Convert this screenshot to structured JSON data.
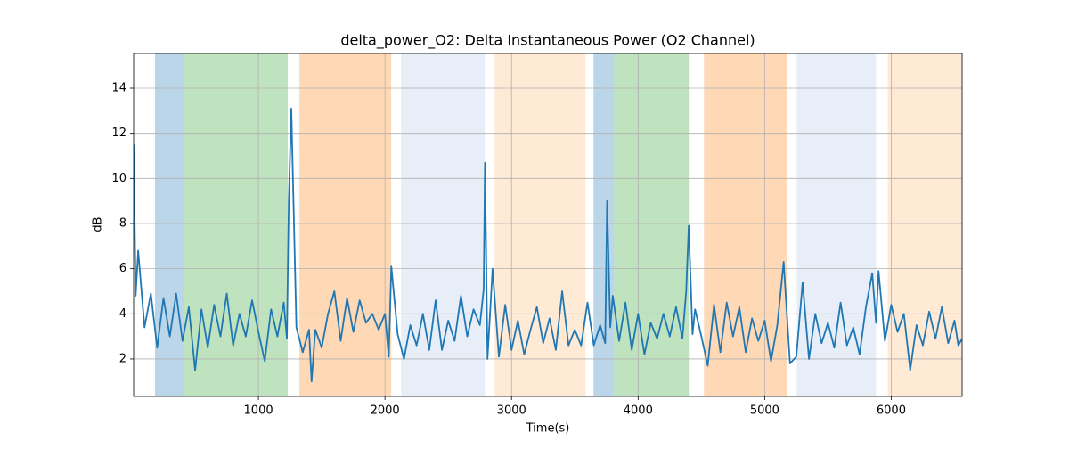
{
  "chart_data": {
    "type": "line",
    "title": "delta_power_O2: Delta Instantaneous Power (O2 Channel)",
    "x_label": "Time(s)",
    "y_label": "dB",
    "xlim": [
      14,
      6560
    ],
    "ylim": [
      0.34,
      15.54
    ],
    "xticks": [
      1000,
      2000,
      3000,
      4000,
      5000,
      6000
    ],
    "yticks": [
      2,
      4,
      6,
      8,
      10,
      12,
      14
    ],
    "grid": true,
    "spans": [
      {
        "x": [
          183,
          415
        ],
        "color": "#1f77b4"
      },
      {
        "x": [
          415,
          1232
        ],
        "color": "#2ca02c"
      },
      {
        "x": [
          1324,
          2049
        ],
        "color": "#ff7f0e"
      },
      {
        "x": [
          2127,
          2789
        ],
        "color": "#aec7e8"
      },
      {
        "x": [
          2866,
          3585
        ],
        "color": "#ffbb78"
      },
      {
        "x": [
          3648,
          3810
        ],
        "color": "#1f77b4"
      },
      {
        "x": [
          3810,
          4401
        ],
        "color": "#2ca02c"
      },
      {
        "x": [
          4521,
          5176
        ],
        "color": "#ff7f0e"
      },
      {
        "x": [
          5254,
          5880
        ],
        "color": "#aec7e8"
      },
      {
        "x": [
          5972,
          6563
        ],
        "color": "#ffbb78"
      }
    ],
    "series": [
      {
        "color": "#1f77b4",
        "x": [
          14,
          30,
          50,
          100,
          150,
          200,
          250,
          300,
          350,
          400,
          450,
          500,
          550,
          600,
          650,
          700,
          750,
          800,
          850,
          900,
          950,
          1000,
          1050,
          1100,
          1150,
          1200,
          1225,
          1240,
          1260,
          1300,
          1350,
          1400,
          1420,
          1450,
          1500,
          1550,
          1600,
          1650,
          1700,
          1750,
          1800,
          1850,
          1900,
          1950,
          2000,
          2030,
          2050,
          2100,
          2150,
          2200,
          2250,
          2300,
          2350,
          2400,
          2450,
          2500,
          2550,
          2600,
          2650,
          2700,
          2750,
          2780,
          2790,
          2810,
          2850,
          2900,
          2950,
          3000,
          3050,
          3100,
          3150,
          3200,
          3250,
          3300,
          3350,
          3400,
          3450,
          3500,
          3550,
          3600,
          3650,
          3700,
          3740,
          3755,
          3780,
          3800,
          3850,
          3900,
          3950,
          4000,
          4050,
          4100,
          4150,
          4200,
          4250,
          4300,
          4350,
          4380,
          4400,
          4430,
          4450,
          4500,
          4550,
          4600,
          4650,
          4700,
          4750,
          4800,
          4850,
          4900,
          4950,
          5000,
          5050,
          5100,
          5150,
          5200,
          5250,
          5300,
          5350,
          5400,
          5450,
          5500,
          5550,
          5600,
          5650,
          5700,
          5750,
          5800,
          5850,
          5880,
          5900,
          5950,
          6000,
          6050,
          6100,
          6150,
          6200,
          6250,
          6300,
          6350,
          6400,
          6450,
          6500,
          6530,
          6560
        ],
        "values": [
          11.5,
          4.8,
          6.8,
          3.4,
          4.9,
          2.5,
          4.7,
          3.0,
          4.9,
          2.8,
          4.3,
          1.5,
          4.2,
          2.5,
          4.4,
          3.0,
          4.9,
          2.6,
          4.0,
          3.0,
          4.6,
          3.2,
          1.9,
          4.2,
          3.0,
          4.5,
          2.9,
          9.0,
          13.1,
          3.4,
          2.3,
          3.3,
          1.0,
          3.3,
          2.5,
          4.0,
          5.0,
          2.8,
          4.7,
          3.2,
          4.6,
          3.6,
          4.0,
          3.3,
          4.0,
          2.1,
          6.1,
          3.1,
          2.0,
          3.5,
          2.6,
          4.0,
          2.4,
          4.6,
          2.4,
          3.7,
          2.8,
          4.8,
          3.0,
          4.2,
          3.5,
          5.1,
          10.7,
          2.0,
          6.0,
          2.1,
          4.4,
          2.4,
          3.7,
          2.2,
          3.3,
          4.3,
          2.7,
          3.8,
          2.4,
          5.0,
          2.6,
          3.3,
          2.6,
          4.5,
          2.6,
          3.5,
          2.7,
          9.0,
          3.4,
          4.8,
          2.8,
          4.5,
          2.4,
          4.0,
          2.2,
          3.6,
          2.9,
          4.0,
          3.0,
          4.3,
          2.9,
          5.0,
          7.9,
          3.1,
          4.2,
          3.0,
          1.7,
          4.4,
          2.3,
          4.5,
          3.0,
          4.3,
          2.3,
          3.8,
          2.8,
          3.7,
          1.9,
          3.5,
          6.3,
          1.8,
          2.1,
          5.4,
          2.0,
          4.0,
          2.7,
          3.6,
          2.5,
          4.5,
          2.6,
          3.4,
          2.2,
          4.3,
          5.8,
          3.6,
          5.9,
          2.8,
          4.4,
          3.2,
          4.0,
          1.5,
          3.5,
          2.6,
          4.1,
          2.9,
          4.3,
          2.7,
          3.7,
          2.6,
          2.9
        ]
      }
    ]
  }
}
